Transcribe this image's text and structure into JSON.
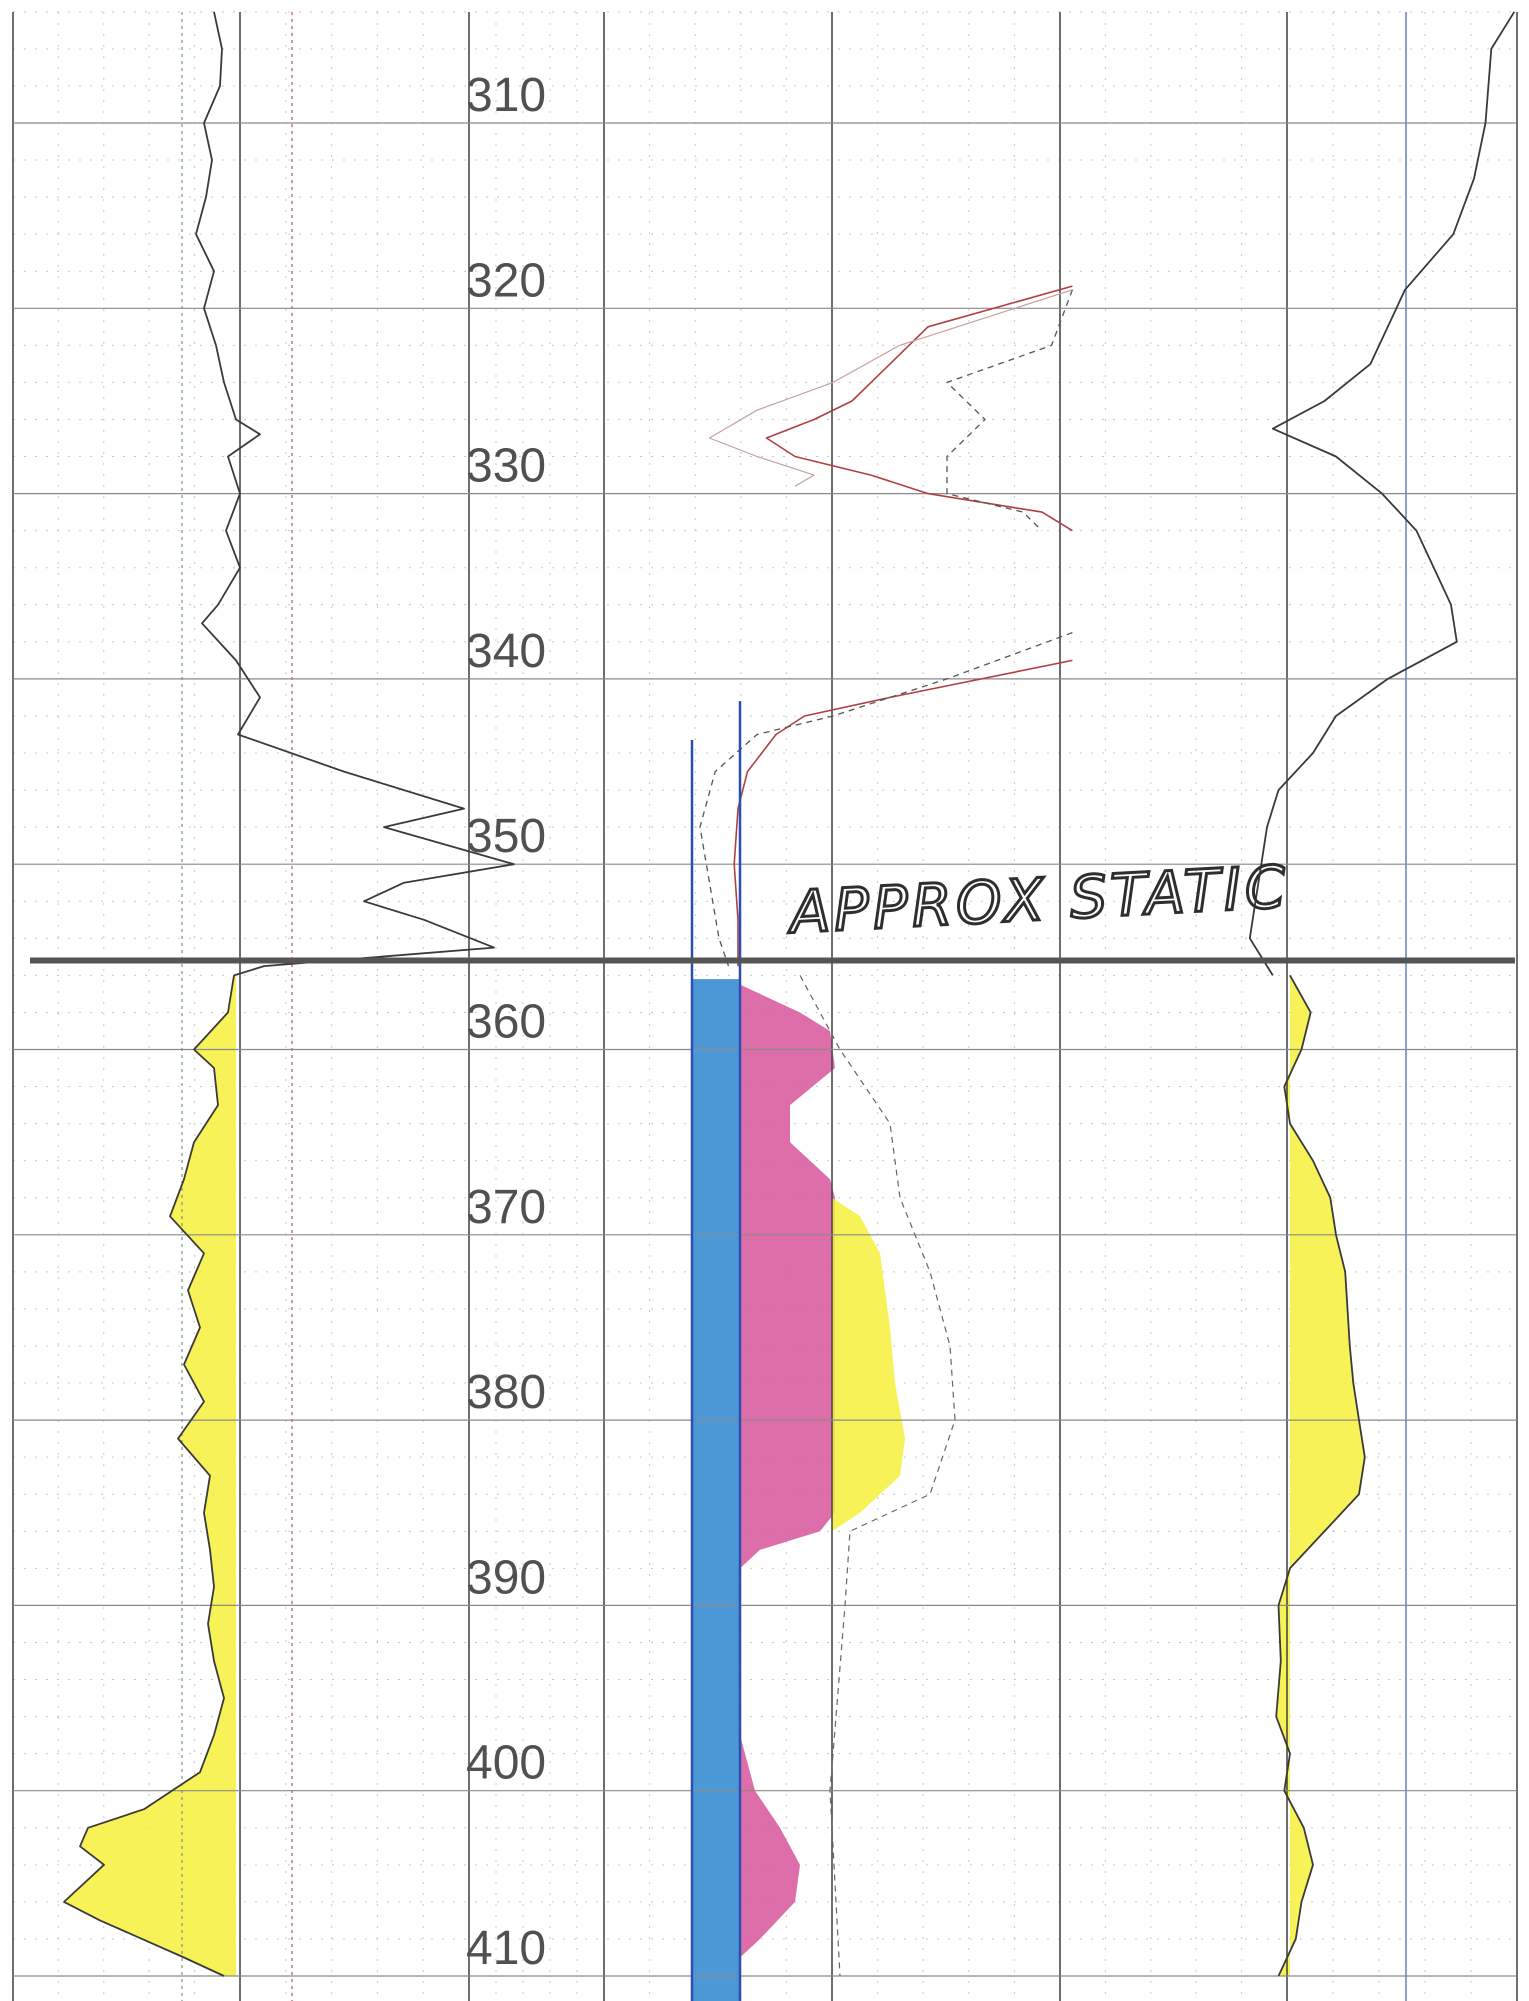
{
  "chart_data": {
    "type": "line",
    "depth_axis": {
      "ylim": [
        304,
        411
      ],
      "tick_labels": [
        "310",
        "320",
        "330",
        "340",
        "350",
        "360",
        "370",
        "380",
        "390",
        "400",
        "410"
      ]
    },
    "grid": true,
    "annotation": {
      "text": "APPROX  STATIC",
      "depth": 355.2
    },
    "colors": {
      "grid_major": "#4a4a4a",
      "grid_minor": "#c9c9c9",
      "curve": "#3a3a3a",
      "yellow_shade": "#f5f03a",
      "magenta_shade": "#d8559b",
      "blue_shade": "#3d8fd4",
      "blue_line": "#2a4fb0",
      "red_curve": "#b04040"
    },
    "tracks": [
      {
        "name": "",
        "curves": [
          {
            "style": "solid",
            "points": [
              [
                304,
                0.45
              ],
              [
                306,
                0.49
              ],
              [
                308,
                0.48
              ],
              [
                310,
                0.4
              ],
              [
                312,
                0.44
              ],
              [
                314,
                0.41
              ],
              [
                316,
                0.36
              ],
              [
                318,
                0.45
              ],
              [
                320,
                0.4
              ],
              [
                322,
                0.46
              ],
              [
                324,
                0.5
              ],
              [
                326,
                0.56
              ],
              [
                326.8,
                0.68
              ],
              [
                328,
                0.52
              ],
              [
                330,
                0.58
              ],
              [
                332,
                0.51
              ],
              [
                334,
                0.58
              ],
              [
                336,
                0.47
              ],
              [
                337,
                0.39
              ],
              [
                339,
                0.56
              ],
              [
                341,
                0.68
              ],
              [
                343,
                0.57
              ],
              [
                345,
                1.1
              ],
              [
                347,
                1.7
              ],
              [
                348,
                1.3
              ],
              [
                350,
                1.95
              ],
              [
                351,
                1.4
              ],
              [
                352,
                1.2
              ],
              [
                353,
                1.5
              ],
              [
                354.5,
                1.85
              ],
              [
                355.5,
                0.7
              ],
              [
                356,
                0.55
              ]
            ]
          },
          {
            "style": "solid",
            "shade": "yellow",
            "points": [
              [
                356,
                0.55
              ],
              [
                358,
                0.52
              ],
              [
                360,
                0.35
              ],
              [
                361,
                0.45
              ],
              [
                363,
                0.47
              ],
              [
                365,
                0.35
              ],
              [
                367,
                0.3
              ],
              [
                369,
                0.23
              ],
              [
                371,
                0.4
              ],
              [
                373,
                0.32
              ],
              [
                375,
                0.38
              ],
              [
                377,
                0.3
              ],
              [
                379,
                0.4
              ],
              [
                381,
                0.27
              ],
              [
                383,
                0.43
              ],
              [
                385,
                0.4
              ],
              [
                387,
                0.43
              ],
              [
                389,
                0.45
              ],
              [
                391,
                0.42
              ],
              [
                393,
                0.45
              ],
              [
                395,
                0.5
              ],
              [
                397,
                0.45
              ],
              [
                399,
                0.38
              ],
              [
                401,
                0.1
              ],
              [
                402,
                -0.18
              ],
              [
                403,
                -0.22
              ],
              [
                404,
                -0.1
              ],
              [
                406,
                -0.3
              ],
              [
                407,
                -0.12
              ],
              [
                409,
                0.3
              ],
              [
                410,
                0.5
              ]
            ]
          }
        ]
      },
      {
        "name": "",
        "curves": [
          {
            "style": "solid-red",
            "points": [
              [
                318.8,
                1.96
              ],
              [
                321,
                1.2
              ],
              [
                323,
                1.0
              ],
              [
                325,
                0.8
              ],
              [
                326,
                0.6
              ],
              [
                327,
                0.35
              ],
              [
                328,
                0.5
              ],
              [
                329,
                0.9
              ],
              [
                330,
                1.2
              ],
              [
                331,
                1.8
              ],
              [
                332,
                1.96
              ]
            ]
          },
          {
            "style": "thin",
            "points": [
              [
                319,
                1.96
              ],
              [
                322,
                1.05
              ],
              [
                324,
                0.7
              ],
              [
                325.5,
                0.3
              ],
              [
                327,
                0.05
              ],
              [
                328,
                0.3
              ],
              [
                329,
                0.6
              ],
              [
                329.6,
                0.5
              ]
            ]
          },
          {
            "style": "dashed",
            "points": [
              [
                319,
                1.96
              ],
              [
                322,
                1.85
              ],
              [
                324,
                1.3
              ],
              [
                326,
                1.5
              ],
              [
                328,
                1.3
              ],
              [
                330,
                1.3
              ],
              [
                331,
                1.7
              ],
              [
                332,
                1.8
              ]
            ]
          },
          {
            "style": "solid-red",
            "points": [
              [
                339,
                1.96
              ],
              [
                341,
                1.0
              ],
              [
                342,
                0.55
              ],
              [
                343,
                0.4
              ],
              [
                345,
                0.25
              ],
              [
                347,
                0.2
              ],
              [
                350,
                0.18
              ],
              [
                353,
                0.2
              ],
              [
                355.5,
                0.2
              ]
            ]
          },
          {
            "style": "dashed",
            "points": [
              [
                337.5,
                1.96
              ],
              [
                340,
                1.3
              ],
              [
                342,
                0.7
              ],
              [
                343,
                0.3
              ],
              [
                345,
                0.08
              ],
              [
                348,
                0.0
              ],
              [
                351,
                0.05
              ],
              [
                354,
                0.1
              ],
              [
                355.5,
                0.15
              ]
            ]
          }
        ]
      },
      {
        "name": "",
        "curves": [
          {
            "style": "solid",
            "points": [
              [
                304,
                1.95
              ],
              [
                306,
                1.75
              ],
              [
                310,
                1.7
              ],
              [
                313,
                1.6
              ],
              [
                316,
                1.42
              ],
              [
                319,
                1.0
              ],
              [
                321,
                0.85
              ],
              [
                323,
                0.7
              ],
              [
                325,
                0.3
              ],
              [
                326.5,
                -0.15
              ],
              [
                328,
                0.4
              ],
              [
                330,
                0.8
              ],
              [
                332,
                1.1
              ],
              [
                334,
                1.25
              ],
              [
                336,
                1.4
              ],
              [
                338,
                1.45
              ],
              [
                340,
                0.85
              ],
              [
                342,
                0.4
              ],
              [
                344,
                0.2
              ],
              [
                346,
                -0.1
              ],
              [
                348,
                -0.2
              ],
              [
                350,
                -0.25
              ],
              [
                352,
                -0.3
              ],
              [
                354,
                -0.35
              ],
              [
                356,
                -0.15
              ]
            ]
          },
          {
            "style": "solid",
            "shade": "yellow",
            "points": [
              [
                356,
                0.0
              ],
              [
                358,
                0.18
              ],
              [
                360,
                0.1
              ],
              [
                362,
                -0.05
              ],
              [
                364,
                0.0
              ],
              [
                366,
                0.2
              ],
              [
                368,
                0.35
              ],
              [
                370,
                0.4
              ],
              [
                372,
                0.48
              ],
              [
                374,
                0.5
              ],
              [
                376,
                0.52
              ],
              [
                378,
                0.55
              ],
              [
                380,
                0.6
              ],
              [
                382,
                0.65
              ],
              [
                384,
                0.6
              ],
              [
                386,
                0.3
              ],
              [
                388,
                0.0
              ],
              [
                390,
                -0.1
              ],
              [
                393,
                -0.08
              ],
              [
                396,
                -0.12
              ],
              [
                398,
                0.0
              ],
              [
                400,
                -0.05
              ],
              [
                402,
                0.12
              ],
              [
                404,
                0.2
              ],
              [
                406,
                0.1
              ],
              [
                408,
                0.05
              ],
              [
                410,
                -0.1
              ]
            ]
          }
        ]
      }
    ]
  }
}
